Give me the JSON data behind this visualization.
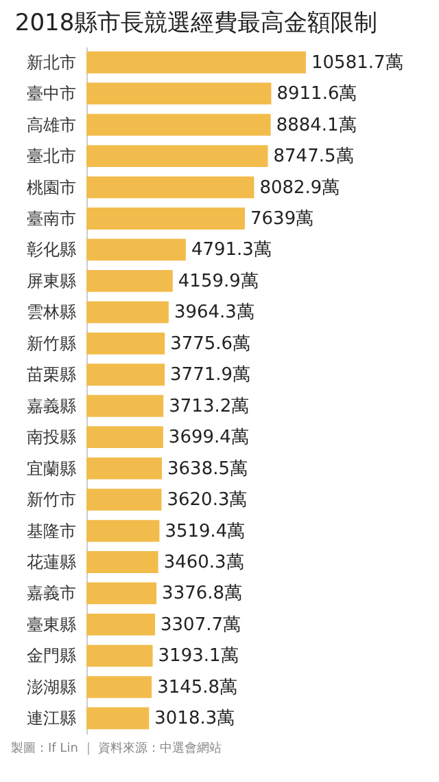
{
  "chart_data": {
    "type": "bar",
    "orientation": "horizontal",
    "title": "2018縣市長競選經費最高金額限制",
    "categories": [
      "新北市",
      "臺中市",
      "高雄市",
      "臺北市",
      "桃園市",
      "臺南市",
      "彰化縣",
      "屏東縣",
      "雲林縣",
      "新竹縣",
      "苗栗縣",
      "嘉義縣",
      "南投縣",
      "宜蘭縣",
      "新竹市",
      "基隆市",
      "花蓮縣",
      "嘉義市",
      "臺東縣",
      "金門縣",
      "澎湖縣",
      "連江縣"
    ],
    "values": [
      10581.7,
      8911.6,
      8884.1,
      8747.5,
      8082.9,
      7639,
      4791.3,
      4159.9,
      3964.3,
      3775.6,
      3771.9,
      3713.2,
      3699.4,
      3638.5,
      3620.3,
      3519.4,
      3460.3,
      3376.8,
      3307.7,
      3193.1,
      3145.8,
      3018.3
    ],
    "value_labels": [
      "10581.7萬",
      "8911.6萬",
      "8884.1萬",
      "8747.5萬",
      "8082.9萬",
      "7639萬",
      "4791.3萬",
      "4159.9萬",
      "3964.3萬",
      "3775.6萬",
      "3771.9萬",
      "3713.2萬",
      "3699.4萬",
      "3638.5萬",
      "3620.3萬",
      "3519.4萬",
      "3460.3萬",
      "3376.8萬",
      "3307.7萬",
      "3193.1萬",
      "3145.8萬",
      "3018.3萬"
    ],
    "color": "#f2bc4c",
    "grid": false,
    "annotations": [
      "製圖：If Lin ｜ 資料來源：中選會網站"
    ]
  }
}
